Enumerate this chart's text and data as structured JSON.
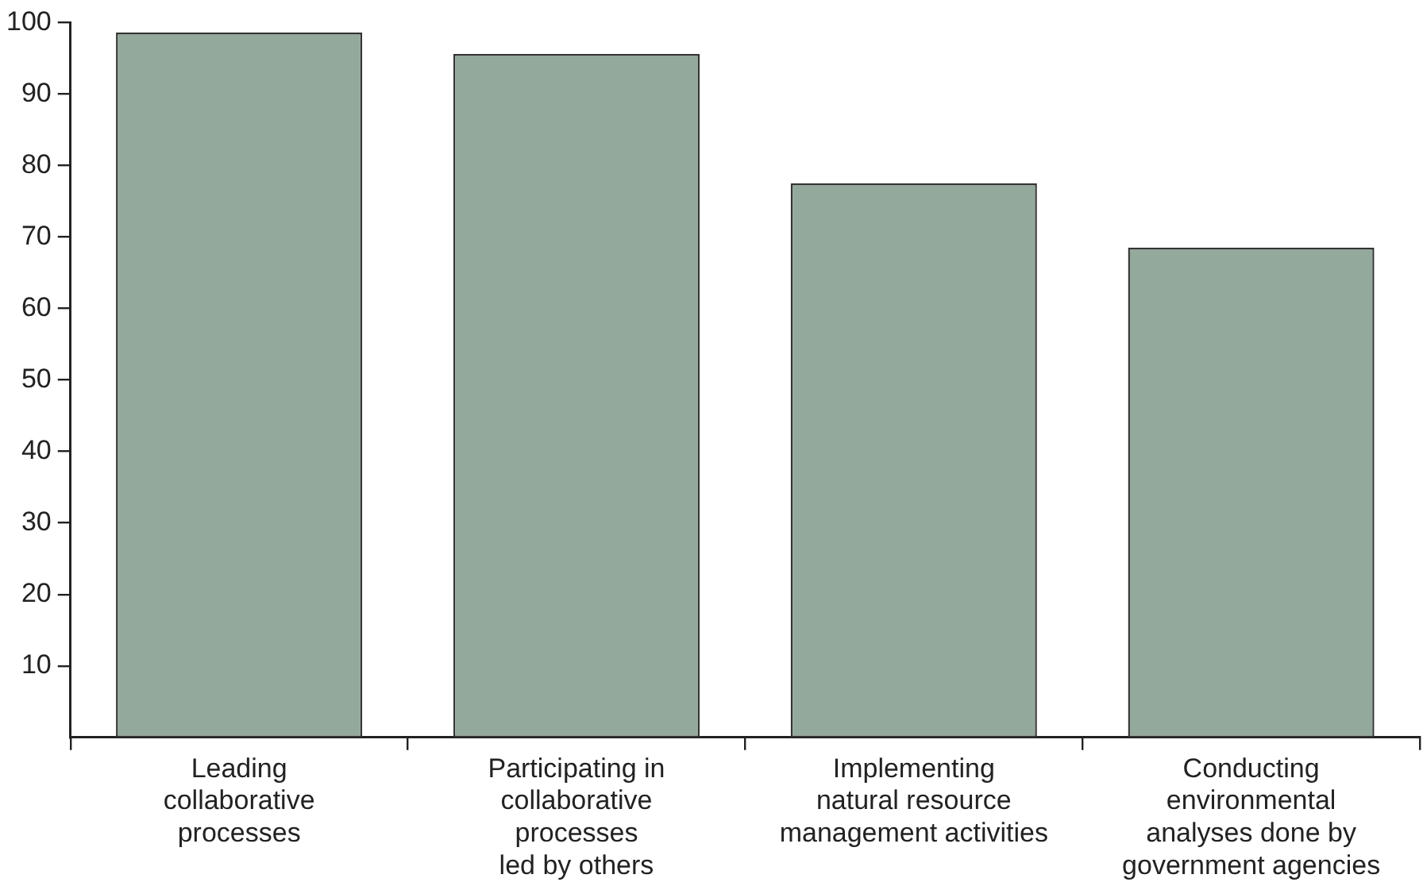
{
  "chart_data": {
    "type": "bar",
    "categories": [
      "Leading\ncollaborative\nprocesses",
      "Participating in\ncollaborative\nprocesses\nled by others",
      "Implementing\nnatural resource\nmanagement activities",
      "Conducting\nenvironmental\nanalyses done by\ngovernment agencies"
    ],
    "values": [
      98.6,
      95.6,
      77.5,
      68.5
    ],
    "color": "#93a99b",
    "ylim": [
      0,
      100
    ],
    "yticks": [
      10,
      20,
      30,
      40,
      50,
      60,
      70,
      80,
      90,
      100
    ],
    "grid": false,
    "legend": false
  }
}
